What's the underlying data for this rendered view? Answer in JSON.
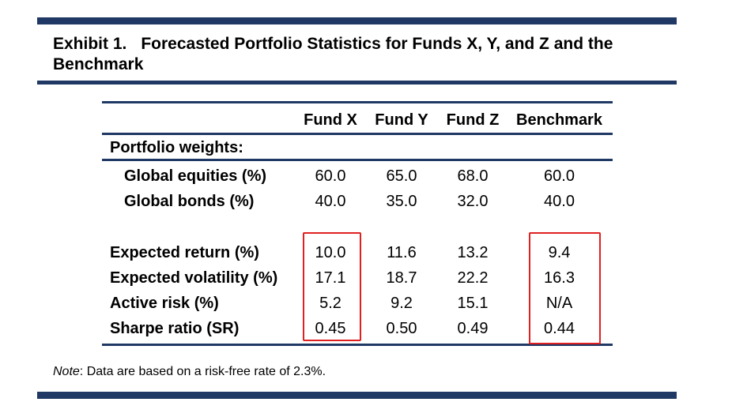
{
  "exhibit": {
    "number": "Exhibit 1.",
    "title": "Forecasted Portfolio Statistics for Funds X, Y, and Z and the Benchmark"
  },
  "table": {
    "columns": [
      "Fund X",
      "Fund Y",
      "Fund Z",
      "Benchmark"
    ],
    "section_label": "Portfolio weights:",
    "rows": [
      {
        "label": "Global equities (%)",
        "values": [
          "60.0",
          "65.0",
          "68.0",
          "60.0"
        ]
      },
      {
        "label": "Global bonds (%)",
        "values": [
          "40.0",
          "35.0",
          "32.0",
          "40.0"
        ]
      },
      {
        "label": "Expected return (%)",
        "values": [
          "10.0",
          "11.6",
          "13.2",
          "9.4"
        ]
      },
      {
        "label": "Expected volatility (%)",
        "values": [
          "17.1",
          "18.7",
          "22.2",
          "16.3"
        ]
      },
      {
        "label": "Active risk (%)",
        "values": [
          "5.2",
          "9.2",
          "15.1",
          "N/A"
        ]
      },
      {
        "label": "Sharpe ratio (SR)",
        "values": [
          "0.45",
          "0.50",
          "0.49",
          "0.44"
        ]
      }
    ]
  },
  "note": {
    "label": "Note",
    "text": ": Data are based on a risk-free rate of 2.3%."
  },
  "highlight_color": "#e02020",
  "rule_color": "#1f3864"
}
